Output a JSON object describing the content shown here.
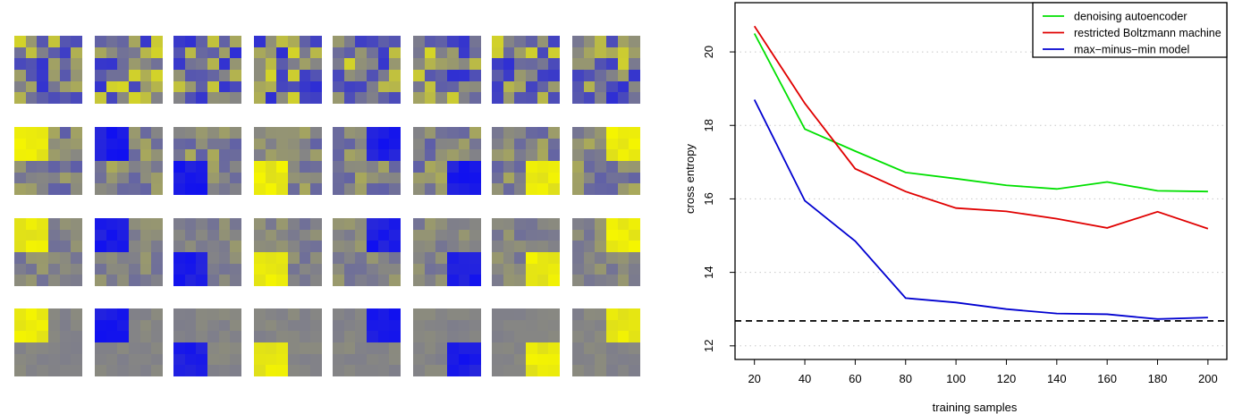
{
  "filters": {
    "grid_size": 6,
    "rows": [
      {
        "kind": "random",
        "noise": 1.0
      },
      {
        "kind": "patch",
        "noise": 0.45
      },
      {
        "kind": "patch",
        "noise": 0.25
      },
      {
        "kind": "patch",
        "noise": 0.08
      }
    ],
    "columns": [
      {
        "quadrant": "top-left",
        "color": "yellow"
      },
      {
        "quadrant": "top-left",
        "color": "blue"
      },
      {
        "quadrant": "bottom-left",
        "color": "blue"
      },
      {
        "quadrant": "bottom-left",
        "color": "yellow"
      },
      {
        "quadrant": "top-right",
        "color": "blue"
      },
      {
        "quadrant": "bottom-right",
        "color": "blue"
      },
      {
        "quadrant": "bottom-right",
        "color": "yellow"
      },
      {
        "quadrant": "top-right",
        "color": "yellow"
      }
    ],
    "colors": {
      "neutral": "#858585",
      "yellow": "#f5f500",
      "blue": "#1010f0"
    }
  },
  "chart_data": {
    "type": "line",
    "xlabel": "training samples",
    "ylabel": "cross entropy",
    "x": [
      20,
      40,
      60,
      80,
      100,
      120,
      140,
      160,
      180,
      200
    ],
    "xticks": [
      "20",
      "40",
      "60",
      "80",
      "100",
      "120",
      "140",
      "160",
      "180",
      "200"
    ],
    "yticks": [
      "12",
      "14",
      "16",
      "18",
      "20"
    ],
    "ylim": [
      11.63,
      21.34
    ],
    "xlim": [
      12.3,
      207.5
    ],
    "grid": "horizontal dotted",
    "legend_position": "top-right",
    "series": [
      {
        "name": "denoising autoencoder",
        "color": "#00e000",
        "values": [
          20.5,
          17.9,
          17.3,
          16.72,
          16.55,
          16.37,
          16.27,
          16.46,
          16.22,
          16.2
        ]
      },
      {
        "name": "restricted Boltzmann machine",
        "color": "#e00000",
        "values": [
          20.7,
          18.6,
          16.82,
          16.2,
          15.75,
          15.66,
          15.46,
          15.21,
          15.65,
          15.19
        ]
      },
      {
        "name": "max−minus−min model",
        "color": "#0000d0",
        "values": [
          18.7,
          15.95,
          14.85,
          13.3,
          13.18,
          13.0,
          12.88,
          12.86,
          12.73,
          12.77
        ]
      }
    ],
    "reference_line": {
      "value": 12.68,
      "style": "dashed",
      "color": "#000000"
    }
  }
}
